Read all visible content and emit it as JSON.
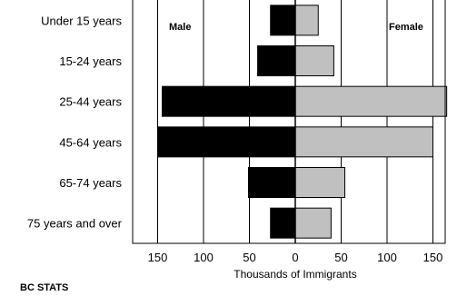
{
  "chart_data": {
    "type": "bar",
    "orientation": "horizontal",
    "layout": "population-pyramid",
    "categories": [
      "Under 15 years",
      "15-24 years",
      "25-44 years",
      "45-64 years",
      "65-74 years",
      "75 years and over"
    ],
    "series": [
      {
        "name": "Male",
        "values": [
          27,
          41,
          145,
          150,
          51,
          27
        ],
        "color": "#000000"
      },
      {
        "name": "Female",
        "values": [
          25,
          42,
          165,
          150,
          54,
          39
        ],
        "color": "#c0c0c0"
      }
    ],
    "xlim": [
      -160,
      165
    ],
    "x_ticks": [
      -150,
      -100,
      -50,
      0,
      50,
      100,
      150
    ],
    "x_tick_labels": [
      "150",
      "100",
      "50",
      "0",
      "50",
      "100",
      "150"
    ],
    "xlabel": "Thousands of Immigrants",
    "grid": "vertical",
    "legend": "inside-top"
  },
  "footer": {
    "source": "BC STATS"
  }
}
